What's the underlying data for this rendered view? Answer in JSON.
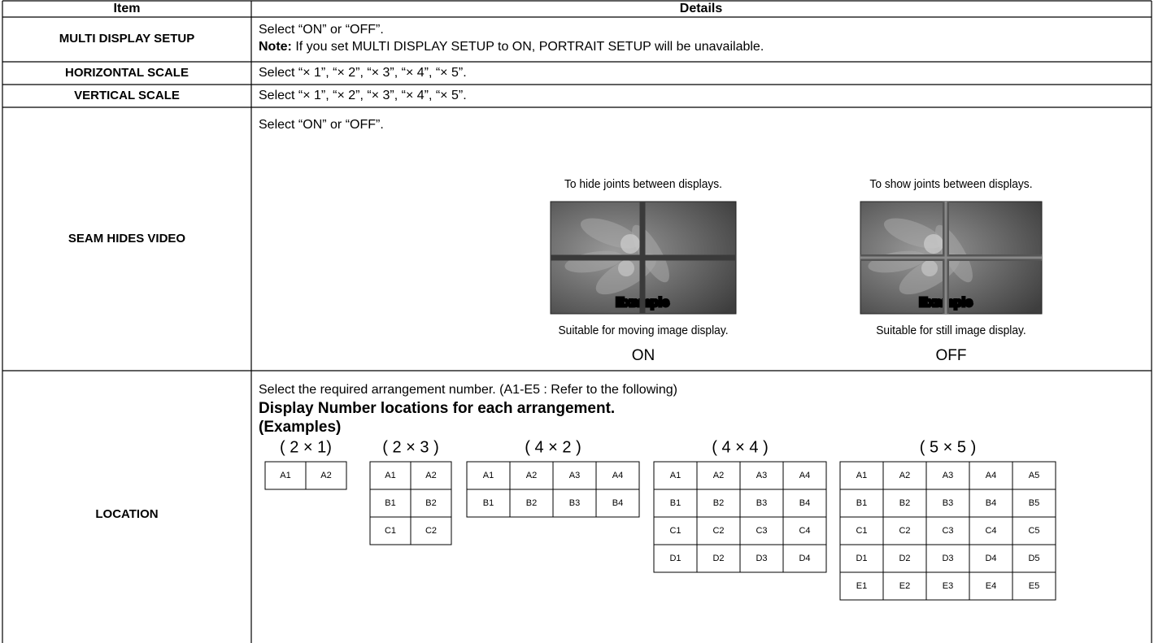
{
  "table": {
    "headers": [
      "Item",
      "Details"
    ],
    "rows": [
      {
        "item": "MULTI DISPLAY SETUP",
        "text": "Select “ON” or “OFF”.",
        "note_label": "Note:",
        "note": " If you set MULTI DISPLAY SETUP to ON, PORTRAIT SETUP will be unavailable."
      },
      {
        "item": "HORIZONTAL SCALE",
        "text": "Select “× 1”, “× 2”, “× 3”, “× 4”, “× 5”."
      },
      {
        "item": "VERTICAL SCALE",
        "text": "Select “× 1”, “× 2”, “× 3”, “× 4”, “× 5”."
      },
      {
        "item": "SEAM HIDES VIDEO",
        "text": "Select “ON” or “OFF”.",
        "examples": [
          {
            "caption": "To hide joints between displays.",
            "image_text": "Example",
            "use": "Suitable for moving image display.",
            "setting": "ON"
          },
          {
            "caption": "To show joints between displays.",
            "image_text": "Example",
            "use": "Suitable for still image display.",
            "setting": "OFF"
          }
        ]
      },
      {
        "item": "LOCATION",
        "text": "Select the required arrangement number. (A1-E5 : Refer to the following)",
        "heading": "Display Number locations for each arrangement.",
        "subheading": "(Examples)",
        "arrangements": [
          {
            "label": "( 2 × 1)",
            "cells": [
              [
                "A1",
                "A2"
              ]
            ]
          },
          {
            "label": "( 2 × 3 )",
            "cells": [
              [
                "A1",
                "A2"
              ],
              [
                "B1",
                "B2"
              ],
              [
                "C1",
                "C2"
              ]
            ]
          },
          {
            "label": "( 4 × 2 )",
            "cells": [
              [
                "A1",
                "A2",
                "A3",
                "A4"
              ],
              [
                "B1",
                "B2",
                "B3",
                "B4"
              ]
            ]
          },
          {
            "label": "( 4 × 4 )",
            "cells": [
              [
                "A1",
                "A2",
                "A3",
                "A4"
              ],
              [
                "B1",
                "B2",
                "B3",
                "B4"
              ],
              [
                "C1",
                "C2",
                "C3",
                "C4"
              ],
              [
                "D1",
                "D2",
                "D3",
                "D4"
              ]
            ]
          },
          {
            "label": "( 5 × 5 )",
            "cells": [
              [
                "A1",
                "A2",
                "A3",
                "A4",
                "A5"
              ],
              [
                "B1",
                "B2",
                "B3",
                "B4",
                "B5"
              ],
              [
                "C1",
                "C2",
                "C3",
                "C4",
                "C5"
              ],
              [
                "D1",
                "D2",
                "D3",
                "D4",
                "D5"
              ],
              [
                "E1",
                "E2",
                "E3",
                "E4",
                "E5"
              ]
            ]
          }
        ]
      }
    ]
  }
}
